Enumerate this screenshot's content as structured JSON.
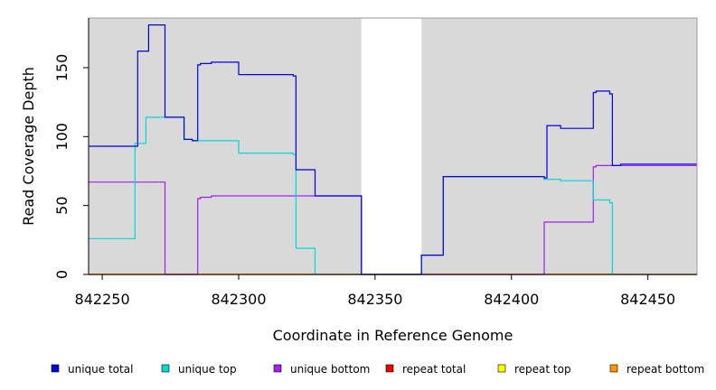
{
  "chart_data": {
    "type": "line",
    "title": "",
    "xlabel": "Coordinate in Reference Genome",
    "ylabel": "Read Coverage Depth",
    "xlim": [
      842245,
      842468
    ],
    "ylim": [
      0,
      186
    ],
    "xticks": [
      842250,
      842300,
      842350,
      842400,
      842450
    ],
    "yticks": [
      0,
      50,
      100,
      150
    ],
    "grid": false,
    "background_color": "#d9d9d9",
    "gaps": [
      [
        842345,
        842367
      ]
    ],
    "legend_position": "bottom",
    "series": [
      {
        "name": "unique total",
        "color": "#0000dd",
        "x": [
          842245,
          842263,
          842263,
          842267,
          842267,
          842273,
          842273,
          842280,
          842280,
          842283,
          842283,
          842285,
          842285,
          842286,
          842286,
          842290,
          842290,
          842300,
          842300,
          842320,
          842320,
          842321,
          842321,
          842328,
          842328,
          842345,
          842345,
          842367,
          842367,
          842375,
          842375,
          842412,
          842412,
          842413,
          842413,
          842418,
          842418,
          842430,
          842430,
          842431,
          842431,
          842436,
          842436,
          842437,
          842437,
          842440,
          842440,
          842468
        ],
        "y": [
          93,
          93,
          162,
          162,
          181,
          181,
          114,
          114,
          98,
          98,
          97,
          97,
          152,
          152,
          153,
          153,
          154,
          154,
          145,
          145,
          144,
          144,
          76,
          76,
          57,
          57,
          0,
          0,
          14,
          14,
          71,
          71,
          70,
          70,
          108,
          108,
          106,
          106,
          132,
          132,
          133,
          133,
          131,
          131,
          79,
          79,
          80,
          80
        ]
      },
      {
        "name": "unique top",
        "color": "#00d8d8",
        "x": [
          842245,
          842262,
          842262,
          842266,
          842266,
          842280,
          842280,
          842283,
          842283,
          842300,
          842300,
          842320,
          842320,
          842321,
          842321,
          842328,
          842328,
          842345,
          842345,
          842367,
          842367,
          842375,
          842375,
          842412,
          842412,
          842418,
          842418,
          842430,
          842430,
          842436,
          842436,
          842437,
          842437,
          842468
        ],
        "y": [
          26,
          26,
          95,
          95,
          114,
          114,
          98,
          98,
          97,
          97,
          88,
          88,
          87,
          87,
          19,
          19,
          0,
          0,
          0,
          0,
          14,
          14,
          71,
          71,
          69,
          69,
          68,
          68,
          54,
          54,
          52,
          52,
          0,
          0
        ]
      },
      {
        "name": "unique bottom",
        "color": "#a020f0",
        "x": [
          842245,
          842273,
          842273,
          842285,
          842285,
          842286,
          842286,
          842290,
          842290,
          842345,
          842345,
          842412,
          842412,
          842430,
          842430,
          842431,
          842431,
          842468
        ],
        "y": [
          67,
          67,
          0,
          0,
          55,
          55,
          56,
          56,
          57,
          57,
          0,
          0,
          38,
          38,
          78,
          78,
          79,
          79
        ]
      },
      {
        "name": "repeat total",
        "color": "#ee0000",
        "x": [
          842245,
          842468
        ],
        "y": [
          0,
          0
        ]
      },
      {
        "name": "repeat top",
        "color": "#ffff00",
        "x": [
          842245,
          842468
        ],
        "y": [
          0,
          0
        ]
      },
      {
        "name": "repeat bottom",
        "color": "#ff9900",
        "x": [
          842245,
          842468
        ],
        "y": [
          0,
          0
        ]
      }
    ]
  }
}
